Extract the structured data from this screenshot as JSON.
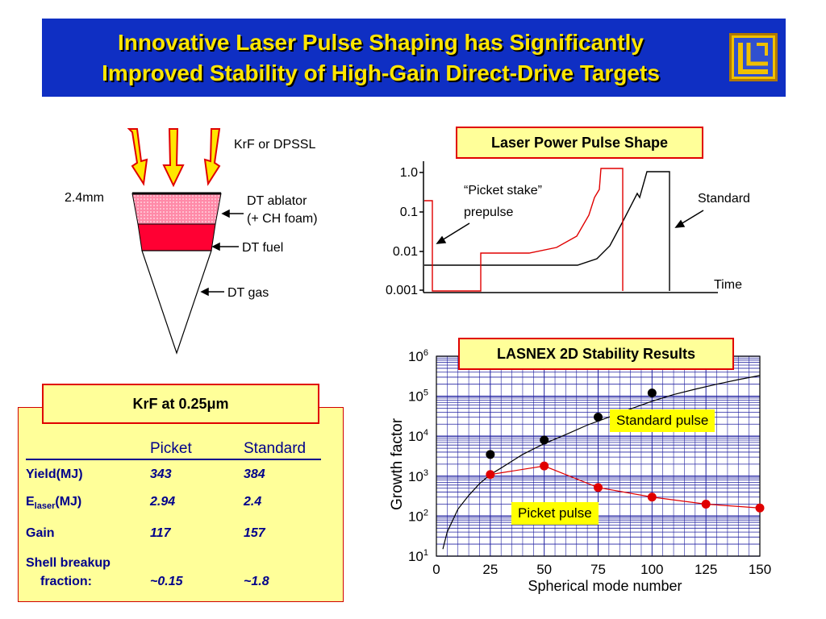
{
  "title": {
    "line1": "Innovative Laser Pulse Shaping has Significantly",
    "line2": "Improved Stability of High-Gain Direct-Drive Targets"
  },
  "target_diagram": {
    "laser_label": "KrF or DPSSL",
    "size_label": "2.4mm",
    "ablator_label_1": "DT ablator",
    "ablator_label_2": "(+ CH foam)",
    "fuel_label": "DT fuel",
    "gas_label": "DT gas"
  },
  "pulse_box_title": "Laser Power Pulse Shape",
  "stability_box_title": "LASNEX 2D Stability Results",
  "krf_table": {
    "title": "KrF at 0.25μm",
    "headers": [
      "",
      "Picket",
      "Standard"
    ],
    "rows": [
      {
        "label": "Yield(MJ)",
        "picket": "343",
        "standard": "384"
      },
      {
        "label_main": "E",
        "label_sub": "laser",
        "label_tail": "(MJ)",
        "picket": "2.94",
        "standard": "2.4"
      },
      {
        "label": "Gain",
        "picket": "117",
        "standard": "157"
      },
      {
        "label_1": "Shell breakup",
        "label_2": "fraction:",
        "picket": "~0.15",
        "standard": "~1.8"
      }
    ]
  },
  "colors": {
    "banner": "#0f2fc3",
    "title_text": "#ffe600",
    "picket": "#e00000",
    "standard": "#000000",
    "grid": "#2020a0",
    "panel": "#ffff99",
    "table_text": "#00008b"
  },
  "chart_data": [
    {
      "type": "line",
      "title": "Laser Power Pulse Shape",
      "xlabel": "Time",
      "ylabel": "",
      "yscale": "log",
      "ylim": [
        0.001,
        1.0
      ],
      "yticks": [
        "1.0",
        "0.1",
        "0.01",
        "0.001"
      ],
      "annotations": [
        "“Picket stake”",
        "prepulse",
        "Standard"
      ],
      "series": [
        {
          "name": "“Picket stake” prepulse",
          "color": "#e00000"
        },
        {
          "name": "Standard",
          "color": "#000000"
        }
      ]
    },
    {
      "type": "line",
      "title": "LASNEX 2D Stability Results",
      "xlabel": "Spherical mode number",
      "ylabel": "Growth factor",
      "yscale": "log",
      "xlim": [
        0,
        150
      ],
      "ylim": [
        10,
        1000000
      ],
      "xticks": [
        "0",
        "25",
        "50",
        "75",
        "100",
        "125",
        "150"
      ],
      "ytick_exponents": [
        "1",
        "2",
        "3",
        "4",
        "5",
        "6"
      ],
      "series": [
        {
          "name": "Standard pulse",
          "color": "#000000",
          "x": [
            25,
            50,
            75,
            100
          ],
          "y": [
            3500,
            8000,
            30000,
            120000
          ]
        },
        {
          "name": "Picket pulse",
          "color": "#e00000",
          "x": [
            25,
            50,
            75,
            100,
            125,
            150
          ],
          "y": [
            1100,
            1800,
            520,
            300,
            200,
            160
          ]
        }
      ],
      "fit_curve_x": [
        3,
        5,
        10,
        15,
        20,
        25,
        30,
        40,
        50,
        60,
        70,
        80,
        90,
        100,
        110,
        120,
        130,
        140,
        150
      ],
      "fit_curve_y": [
        15,
        40,
        150,
        330,
        650,
        1100,
        1600,
        3500,
        6500,
        11000,
        19000,
        30000,
        48000,
        75000,
        110000,
        150000,
        200000,
        260000,
        330000
      ]
    }
  ]
}
